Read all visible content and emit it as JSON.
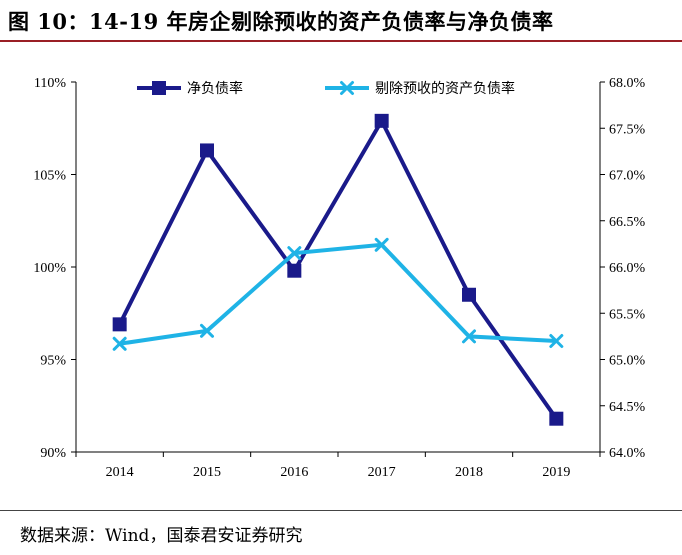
{
  "figure_title": "图 10：14-19 年房企剔除预收的资产负债率与净负债率",
  "source_note": "数据来源：Wind，国泰君安证券研究",
  "colors": {
    "net_debt": "#1a1a8a",
    "asset_liability": "#1fb3e6",
    "title_rule": "#9a1f25"
  },
  "chart_data": {
    "type": "line",
    "title": "",
    "x": [
      "2014",
      "2015",
      "2016",
      "2017",
      "2018",
      "2019"
    ],
    "left_axis": {
      "min": 90,
      "max": 110,
      "step": 5,
      "tick_labels": [
        "90%",
        "95%",
        "100%",
        "105%",
        "110%"
      ]
    },
    "right_axis": {
      "min": 64.0,
      "max": 68.0,
      "step": 0.5,
      "tick_labels": [
        "64.0%",
        "64.5%",
        "65.0%",
        "65.5%",
        "66.0%",
        "66.5%",
        "67.0%",
        "67.5%",
        "68.0%"
      ]
    },
    "series": [
      {
        "name": "净负债率",
        "axis": "left",
        "marker": "square",
        "color": "#1a1a8a",
        "values": [
          96.9,
          106.3,
          99.8,
          107.9,
          98.5,
          91.8
        ]
      },
      {
        "name": "剔除预收的资产负债率",
        "axis": "right",
        "marker": "x",
        "color": "#1fb3e6",
        "values": [
          65.17,
          65.31,
          66.15,
          66.24,
          65.25,
          65.2
        ]
      }
    ],
    "grid": false,
    "legend": "top-center"
  }
}
